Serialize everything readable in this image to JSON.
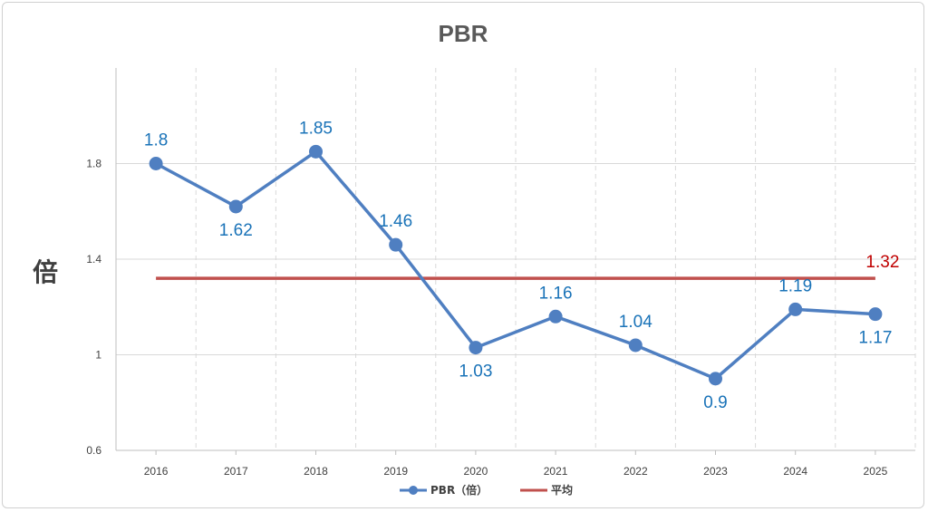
{
  "chart_data": {
    "type": "line",
    "title": "PBR",
    "xlabel": "",
    "ylabel": "倍",
    "ylim": [
      0.6,
      2.2
    ],
    "yticks": [
      0.6,
      1,
      1.4,
      1.8
    ],
    "ytick_labels": [
      "0.6",
      "1",
      "1.4",
      "1.8"
    ],
    "categories": [
      "2016",
      "2017",
      "2018",
      "2019",
      "2020",
      "2021",
      "2022",
      "2023",
      "2024",
      "2025"
    ],
    "series": [
      {
        "name": "PBR（倍）",
        "values": [
          1.8,
          1.62,
          1.85,
          1.46,
          1.03,
          1.16,
          1.04,
          0.9,
          1.19,
          1.17
        ],
        "labels": [
          "1.8",
          "1.62",
          "1.85",
          "1.46",
          "1.03",
          "1.16",
          "1.04",
          "0.9",
          "1.19",
          "1.17"
        ],
        "color": "#4f7fc1",
        "label_color": "#1a73b8",
        "marker": "circle"
      },
      {
        "name": "平均",
        "values": [
          1.32,
          1.32,
          1.32,
          1.32,
          1.32,
          1.32,
          1.32,
          1.32,
          1.32,
          1.32
        ],
        "label": "1.32",
        "color": "#c0504d",
        "label_color": "#c00000"
      }
    ],
    "grid": {
      "horizontal": true,
      "vertical_dashed": true
    },
    "legend": "bottom"
  }
}
